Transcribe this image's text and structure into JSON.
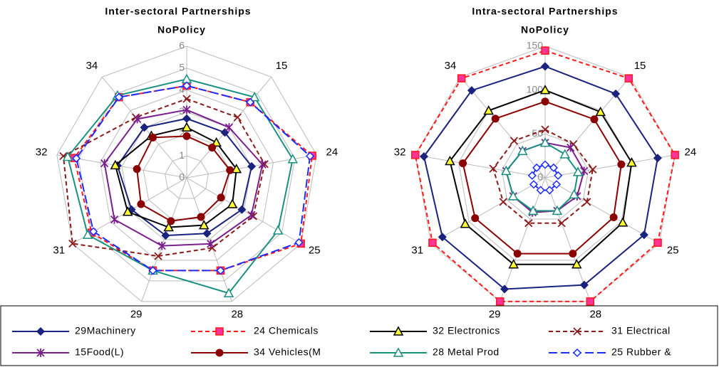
{
  "chart_data": [
    {
      "type": "radar",
      "title": "Inter-sectoral Partnerships",
      "subtitle": "NoPolicy",
      "categories": [
        null,
        "15",
        "24",
        "25",
        "28",
        "29",
        "31",
        "32",
        "34"
      ],
      "ylim": [
        0,
        6
      ],
      "yticks": [
        0,
        1,
        2,
        3,
        4,
        5,
        6
      ],
      "grid": true,
      "series": [
        {
          "name": "29Machinery",
          "color": "#1a237e",
          "marker": "diamond",
          "dash": "solid",
          "values": [
            2.7,
            2.7,
            3.0,
            2.9,
            2.7,
            2.8,
            2.9,
            3.2,
            3.0
          ]
        },
        {
          "name": "24 Chemicals",
          "color": "#ff1a1a",
          "marker": "square",
          "dash": "dashed",
          "values": [
            4.2,
            4.5,
            5.8,
            6.0,
            4.5,
            4.5,
            5.0,
            5.2,
            4.8
          ]
        },
        {
          "name": "32 Electronics",
          "color": "#000000",
          "marker": "triangle",
          "dash": "solid",
          "values": [
            2.3,
            2.1,
            2.3,
            2.4,
            2.3,
            2.4,
            3.1,
            3.3,
            2.5
          ]
        },
        {
          "name": "31 Electrical",
          "color": "#8b1a1a",
          "marker": "x",
          "dash": "dashed",
          "values": [
            3.6,
            3.6,
            3.6,
            3.5,
            3.4,
            3.8,
            6.0,
            5.7,
            3.6
          ]
        },
        {
          "name": "15Food(L)",
          "color": "#7b1f8c",
          "marker": "star",
          "dash": "solid",
          "values": [
            3.1,
            3.0,
            3.5,
            3.4,
            3.2,
            3.3,
            3.8,
            3.8,
            3.5
          ]
        },
        {
          "name": "34 Vehicles(M",
          "color": "#8b0000",
          "marker": "circle",
          "dash": "solid",
          "values": [
            1.9,
            1.8,
            2.0,
            1.8,
            1.9,
            2.1,
            2.4,
            2.3,
            2.4
          ]
        },
        {
          "name": "28 Metal Prod",
          "color": "#1a9080",
          "marker": "triangle-open",
          "dash": "solid",
          "values": [
            4.5,
            4.8,
            4.9,
            4.8,
            5.6,
            4.5,
            5.2,
            5.5,
            4.9
          ]
        },
        {
          "name": "25 Rubber &",
          "color": "#1a2cff",
          "marker": "diamond-open",
          "dash": "longdash",
          "values": [
            4.2,
            4.5,
            5.7,
            5.9,
            4.5,
            4.5,
            4.9,
            5.1,
            4.8
          ]
        }
      ]
    },
    {
      "type": "radar",
      "title": "Intra-sectoral Partnerships",
      "subtitle": "NoPolicy",
      "categories": [
        null,
        "15",
        "24",
        "25",
        "28",
        "29",
        "31",
        "32",
        "34"
      ],
      "ylim": [
        0,
        150
      ],
      "yticks": [
        0,
        50,
        100,
        150
      ],
      "grid": true,
      "series": [
        {
          "values": [
            127,
            125,
            130,
            130,
            130,
            135,
            135,
            140,
            130
          ]
        },
        {
          "values": [
            145,
            148,
            150,
            148,
            150,
            150,
            148,
            150,
            148
          ]
        },
        {
          "values": [
            100,
            98,
            100,
            102,
            105,
            105,
            105,
            110,
            100
          ]
        },
        {
          "values": [
            55,
            50,
            55,
            55,
            55,
            55,
            55,
            60,
            55
          ]
        },
        {
          "values": [
            40,
            45,
            45,
            42,
            40,
            42,
            42,
            45,
            40
          ]
        },
        {
          "values": [
            87,
            87,
            88,
            90,
            92,
            92,
            92,
            95,
            88
          ]
        },
        {
          "values": [
            40,
            35,
            38,
            38,
            40,
            40,
            42,
            45,
            40
          ]
        },
        {
          "values": [
            15,
            15,
            15,
            15,
            15,
            15,
            15,
            15,
            15
          ]
        }
      ]
    }
  ]
}
